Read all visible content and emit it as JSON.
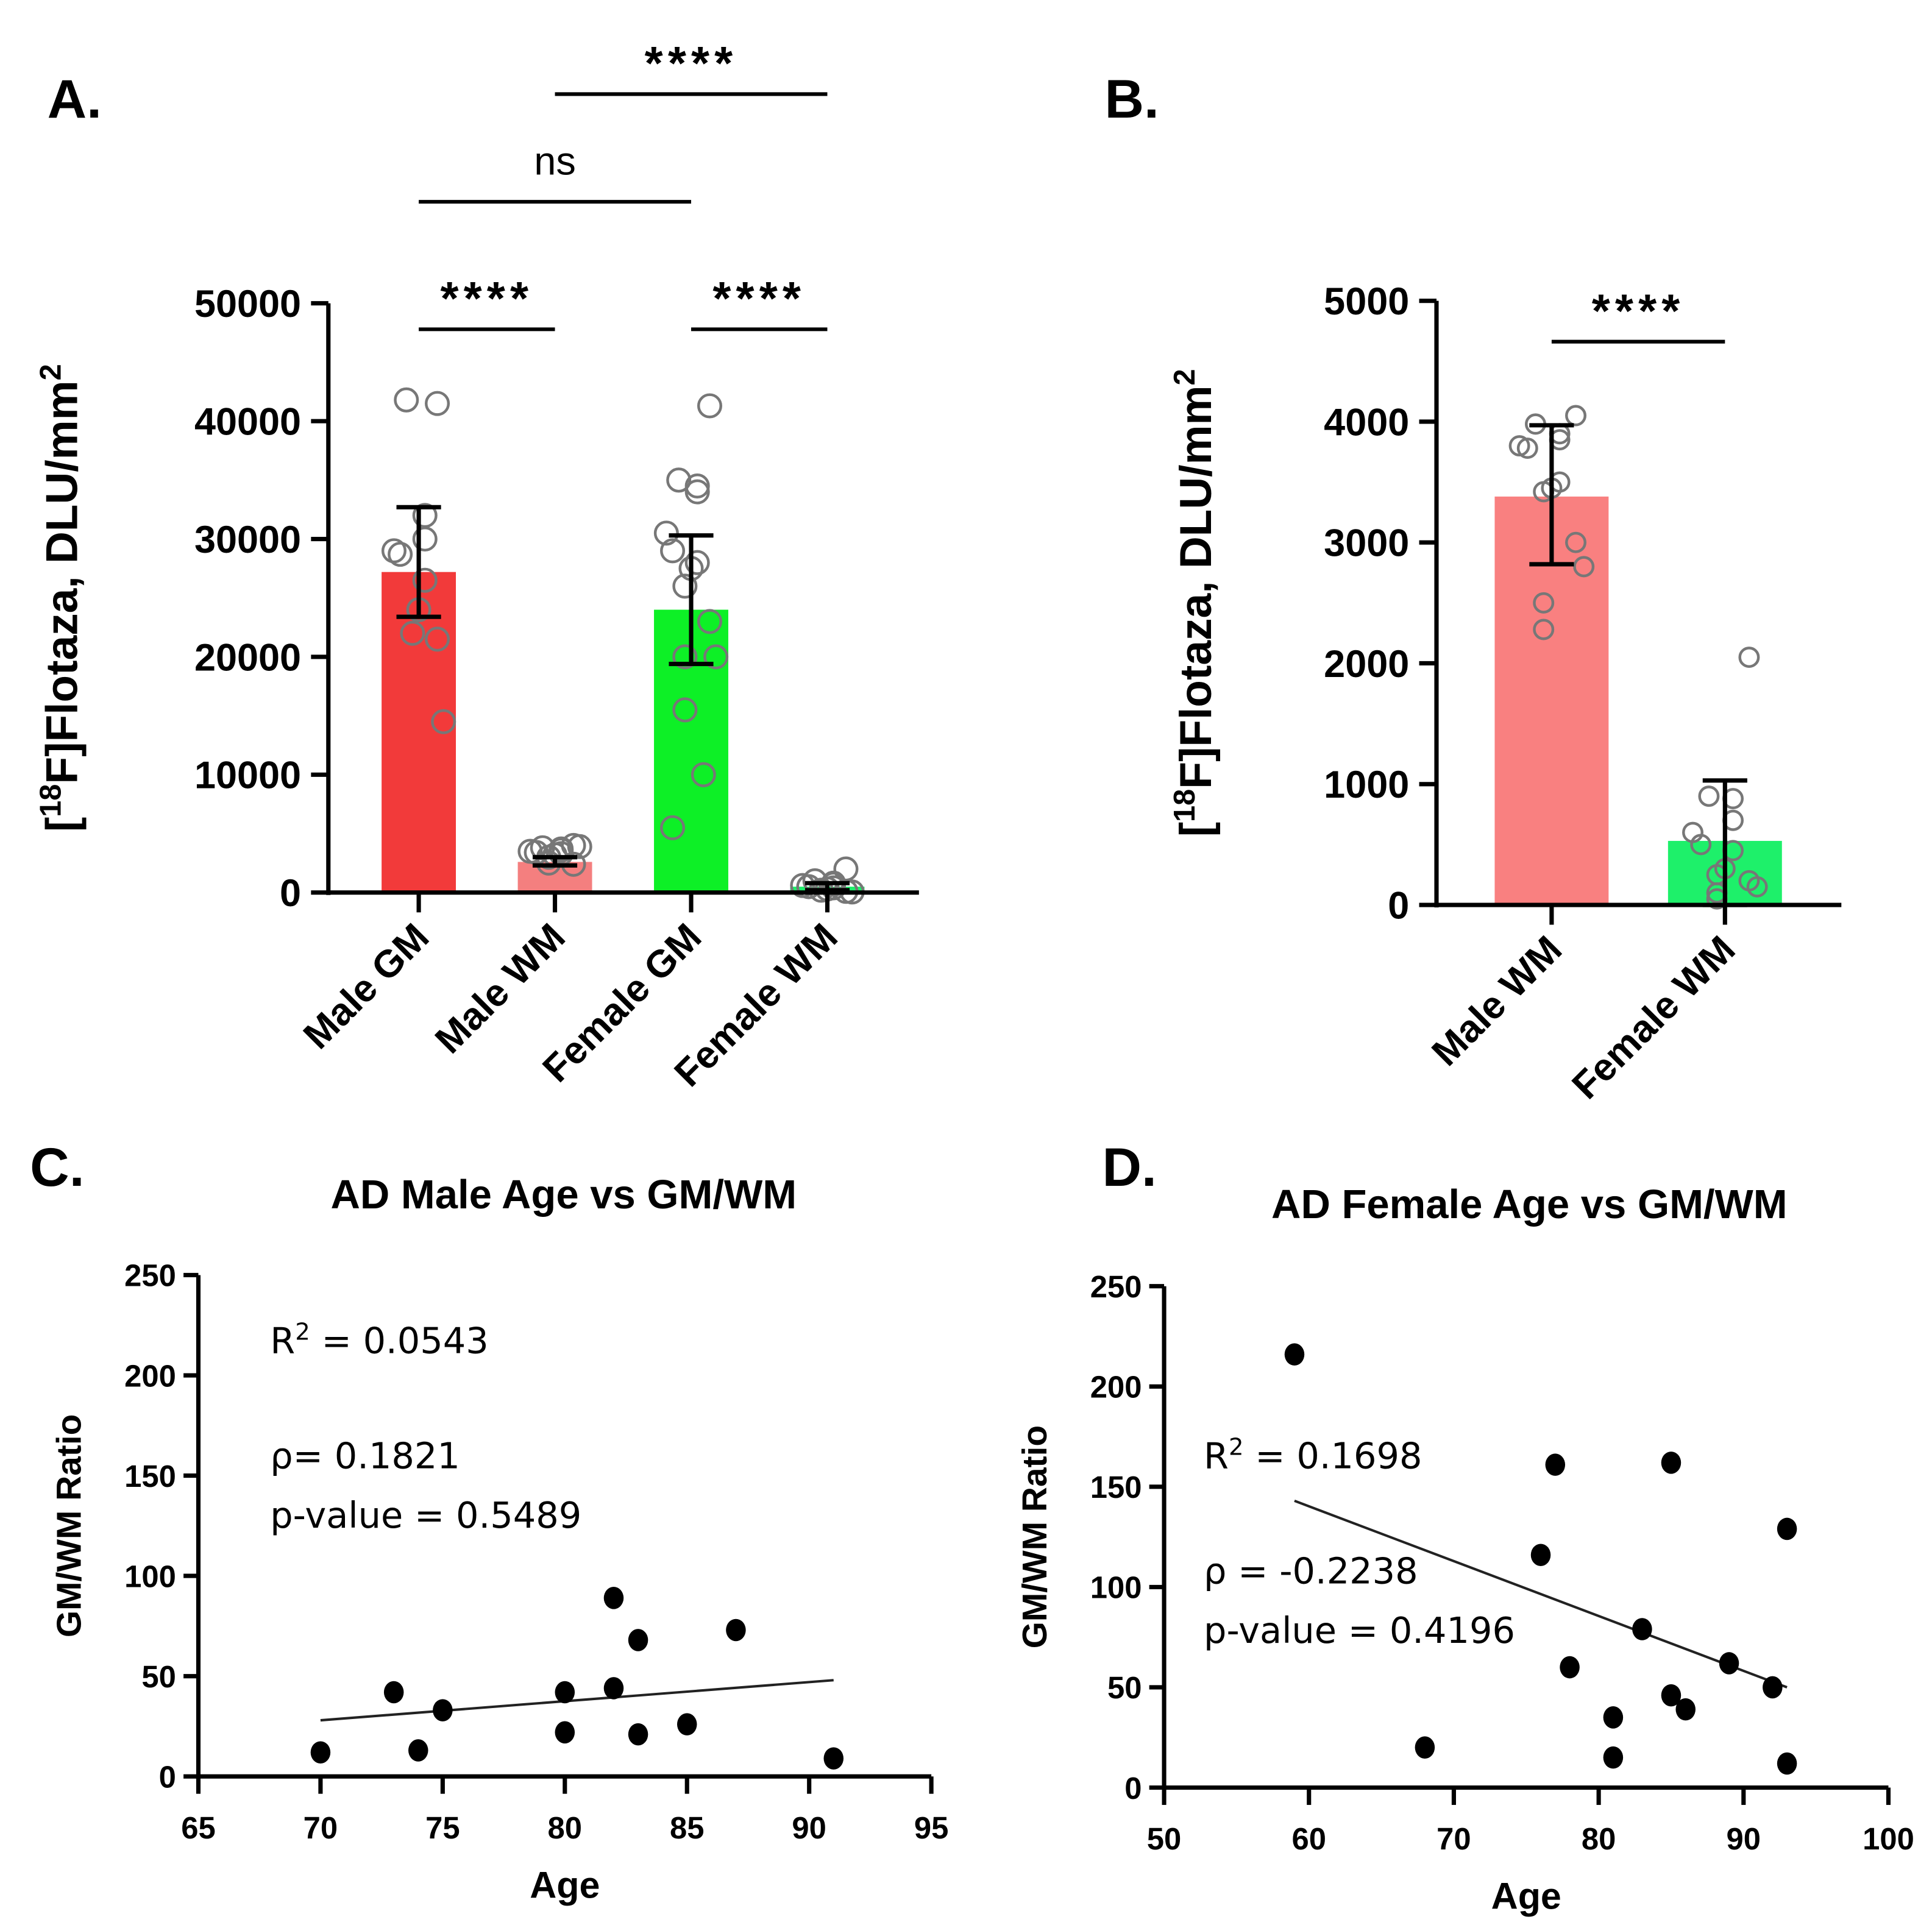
{
  "chart_data": [
    {
      "panel": "A.",
      "type": "bar",
      "ylabel_pre": "[",
      "ylabel_sup": "18",
      "ylabel_post": "F]Flotaza, DLU/mm",
      "ylabel_sup2": "2",
      "ylim": [
        0,
        50000
      ],
      "yticks": [
        0,
        10000,
        20000,
        30000,
        40000,
        50000
      ],
      "categories": [
        "Male GM",
        "Male WM",
        "Female GM",
        "Female WM"
      ],
      "colors": [
        "#f23a3a",
        "#f47f7f",
        "#0df026",
        "#1ef06a"
      ],
      "values": [
        27200,
        2600,
        24000,
        500
      ],
      "errors": [
        [
          23400,
          32700
        ],
        [
          2300,
          3000
        ],
        [
          19400,
          30300
        ],
        [
          200,
          800
        ]
      ],
      "points": [
        [
          41500,
          41800,
          32000,
          30000,
          29000,
          28700,
          26500,
          24000,
          22000,
          21500,
          14500
        ],
        [
          4000,
          3800,
          3700,
          3600,
          3500,
          3400,
          3300,
          3200,
          2500,
          2400,
          3900,
          3000
        ],
        [
          41300,
          35000,
          34500,
          34000,
          30500,
          29000,
          28000,
          27500,
          26000,
          23000,
          20000,
          20000,
          15500,
          10000,
          5500
        ],
        [
          2000,
          1000,
          800,
          700,
          600,
          500,
          400,
          300,
          200,
          100,
          50
        ]
      ],
      "significance": [
        {
          "pair": [
            0,
            1
          ],
          "label": "****"
        },
        {
          "pair": [
            2,
            3
          ],
          "label": "****"
        },
        {
          "pair": [
            0,
            2
          ],
          "label": "ns"
        },
        {
          "pair": [
            1,
            3
          ],
          "label": "****"
        }
      ]
    },
    {
      "panel": "B.",
      "type": "bar",
      "ylabel_pre": "[",
      "ylabel_sup": "18",
      "ylabel_post": "F]Flotaza, DLU/mm",
      "ylabel_sup2": "2",
      "ylim": [
        0,
        5000
      ],
      "yticks": [
        0,
        1000,
        2000,
        3000,
        4000,
        5000
      ],
      "categories": [
        "Male WM",
        "Female WM"
      ],
      "colors": [
        "#f98080",
        "#1ef06a"
      ],
      "values": [
        3380,
        530
      ],
      "errors": [
        [
          2820,
          3970
        ],
        [
          0,
          1030
        ]
      ],
      "points": [
        [
          4050,
          3980,
          3900,
          3850,
          3800,
          3780,
          3500,
          3450,
          3420,
          3000,
          2800,
          2500,
          2280
        ],
        [
          2050,
          900,
          880,
          700,
          600,
          500,
          450,
          300,
          250,
          200,
          150,
          100,
          50
        ]
      ],
      "significance": [
        {
          "pair": [
            0,
            1
          ],
          "label": "****"
        }
      ]
    },
    {
      "panel": "C.",
      "type": "scatter",
      "title": "AD Male Age vs GM/WM",
      "xlabel": "Age",
      "ylabel": "GM/WM Ratio",
      "xlim": [
        65,
        95
      ],
      "ylim": [
        0,
        250
      ],
      "xticks": [
        65,
        70,
        75,
        80,
        85,
        90,
        95
      ],
      "yticks": [
        0,
        50,
        100,
        150,
        200,
        250
      ],
      "x": [
        70,
        73,
        74,
        75,
        80,
        80,
        82,
        82,
        83,
        83,
        85,
        87,
        91
      ],
      "y": [
        12,
        42,
        13,
        33,
        42,
        22,
        89,
        44,
        68,
        21,
        26,
        73,
        9
      ],
      "fit": [
        [
          70,
          28
        ],
        [
          91,
          48
        ]
      ],
      "annotations": {
        "r2_pre": "R",
        "r2_sup": "2",
        "r2_post": " = 0.0543",
        "rho": "ρ= 0.1821",
        "p": "p-value = 0.5489"
      }
    },
    {
      "panel": "D.",
      "type": "scatter",
      "title": "AD Female Age vs GM/WM",
      "xlabel": "Age",
      "ylabel": "GM/WM Ratio",
      "xlim": [
        50,
        100
      ],
      "ylim": [
        0,
        250
      ],
      "xticks": [
        50,
        60,
        70,
        80,
        90,
        100
      ],
      "yticks": [
        0,
        50,
        100,
        150,
        200,
        250
      ],
      "x": [
        59,
        68,
        76,
        77,
        78,
        81,
        81,
        83,
        85,
        85,
        86,
        89,
        92,
        93,
        93
      ],
      "y": [
        216,
        20,
        116,
        161,
        60,
        35,
        15,
        79,
        162,
        46,
        39,
        62,
        50,
        129,
        12
      ],
      "fit": [
        [
          59,
          143
        ],
        [
          93,
          50
        ]
      ],
      "annotations": {
        "r2_pre": "R",
        "r2_sup": "2",
        "r2_post": " = 0.1698",
        "rho": "ρ = -0.2238",
        "p": "p-value = 0.4196"
      }
    }
  ]
}
